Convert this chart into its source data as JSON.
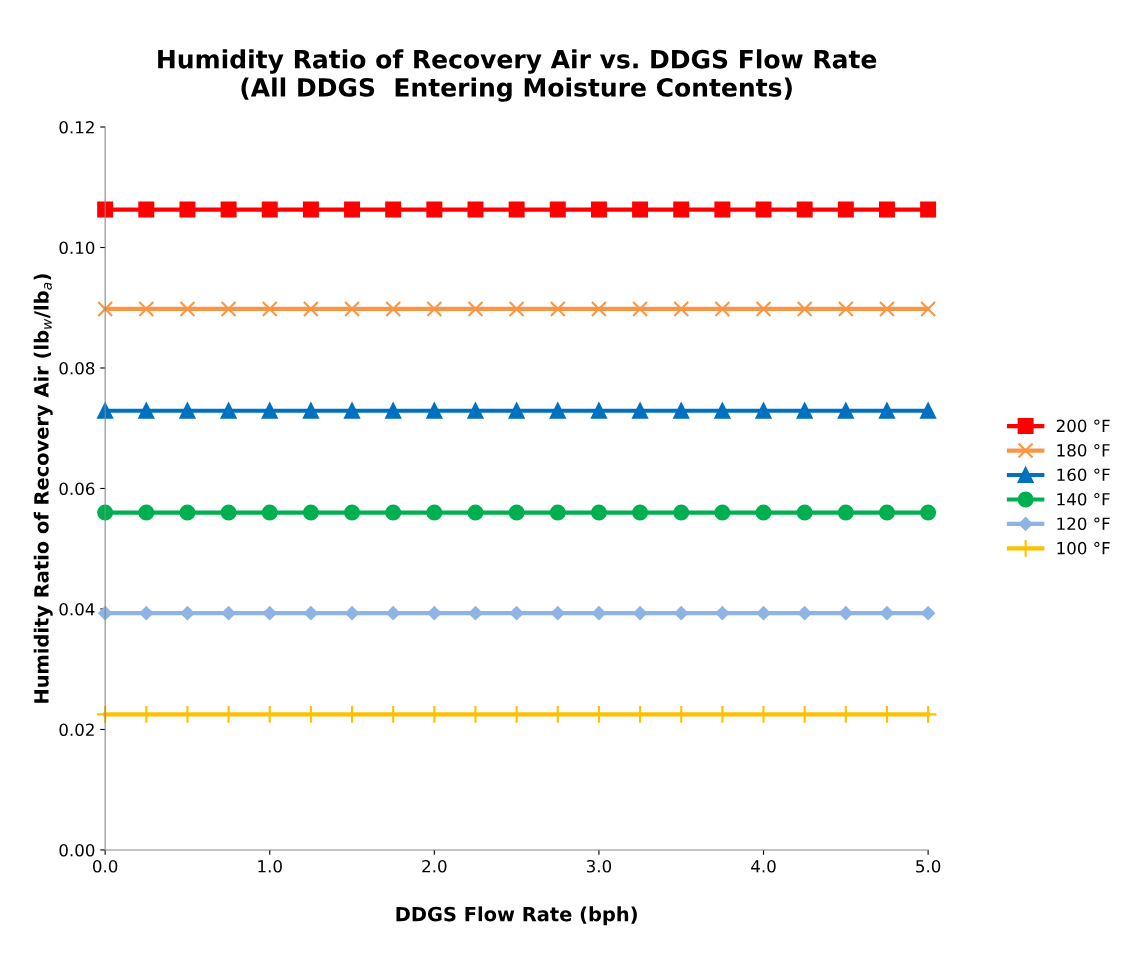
{
  "chart_data": {
    "type": "line",
    "title": "Humidity Ratio of Recovery Air vs. DDGS Flow Rate\n(All DDGS  Entering Moisture Contents)",
    "xlabel": "DDGS Flow Rate (bph)",
    "ylabel": "Humidity Ratio of Recovery Air (lb$_{w}$/lb$_{a}$)",
    "x": [
      0,
      0.25,
      0.5,
      0.75,
      1,
      1.25,
      1.5,
      1.75,
      2,
      2.25,
      2.5,
      2.75,
      3,
      3.25,
      3.5,
      3.75,
      4,
      4.25,
      4.5,
      4.75,
      5
    ],
    "series": [
      {
        "name": "200 °F",
        "color": "#ff0000",
        "marker": "square",
        "values": [
          0.1063,
          0.1063,
          0.1063,
          0.1063,
          0.1063,
          0.1063,
          0.1063,
          0.1063,
          0.1063,
          0.1063,
          0.1063,
          0.1063,
          0.1063,
          0.1063,
          0.1063,
          0.1063,
          0.1063,
          0.1063,
          0.1063,
          0.1063,
          0.1063
        ]
      },
      {
        "name": "180 °F",
        "color": "#f79646",
        "marker": "cross",
        "values": [
          0.0898,
          0.0898,
          0.0898,
          0.0898,
          0.0898,
          0.0898,
          0.0898,
          0.0898,
          0.0898,
          0.0898,
          0.0898,
          0.0898,
          0.0898,
          0.0898,
          0.0898,
          0.0898,
          0.0898,
          0.0898,
          0.0898,
          0.0898,
          0.0898
        ]
      },
      {
        "name": "160 °F",
        "color": "#0070c0",
        "marker": "triangle",
        "values": [
          0.0729,
          0.0729,
          0.0729,
          0.0729,
          0.0729,
          0.0729,
          0.0729,
          0.0729,
          0.0729,
          0.0729,
          0.0729,
          0.0729,
          0.0729,
          0.0729,
          0.0729,
          0.0729,
          0.0729,
          0.0729,
          0.0729,
          0.0729,
          0.0729
        ]
      },
      {
        "name": "140 °F",
        "color": "#00b050",
        "marker": "circle",
        "values": [
          0.056,
          0.056,
          0.056,
          0.056,
          0.056,
          0.056,
          0.056,
          0.056,
          0.056,
          0.056,
          0.056,
          0.056,
          0.056,
          0.056,
          0.056,
          0.056,
          0.056,
          0.056,
          0.056,
          0.056,
          0.056
        ]
      },
      {
        "name": "120 °F",
        "color": "#8eb4e3",
        "marker": "diamond",
        "values": [
          0.0393,
          0.0393,
          0.0393,
          0.0393,
          0.0393,
          0.0393,
          0.0393,
          0.0393,
          0.0393,
          0.0393,
          0.0393,
          0.0393,
          0.0393,
          0.0393,
          0.0393,
          0.0393,
          0.0393,
          0.0393,
          0.0393,
          0.0393,
          0.0393
        ]
      },
      {
        "name": "100 °F",
        "color": "#ffc000",
        "marker": "plus",
        "values": [
          0.0225,
          0.0225,
          0.0225,
          0.0225,
          0.0225,
          0.0225,
          0.0225,
          0.0225,
          0.0225,
          0.0225,
          0.0225,
          0.0225,
          0.0225,
          0.0225,
          0.0225,
          0.0225,
          0.0225,
          0.0225,
          0.0225,
          0.0225,
          0.0225
        ]
      }
    ],
    "xlim": [
      0,
      5
    ],
    "xticks": [
      {
        "value": 0,
        "label": "0.0"
      },
      {
        "value": 1,
        "label": "1.0"
      },
      {
        "value": 2,
        "label": "2.0"
      },
      {
        "value": 3,
        "label": "3.0"
      },
      {
        "value": 4,
        "label": "4.0"
      },
      {
        "value": 5,
        "label": "5.0"
      }
    ],
    "ylim": [
      0,
      0.12
    ],
    "yticks": [
      {
        "value": 0,
        "label": "0.00"
      },
      {
        "value": 0.02,
        "label": "0.02"
      },
      {
        "value": 0.04,
        "label": "0.04"
      },
      {
        "value": 0.06,
        "label": "0.06"
      },
      {
        "value": 0.08,
        "label": "0.08"
      },
      {
        "value": 0.1,
        "label": "0.10"
      },
      {
        "value": 0.12,
        "label": "0.12"
      }
    ],
    "grid": false,
    "legend": "right"
  }
}
